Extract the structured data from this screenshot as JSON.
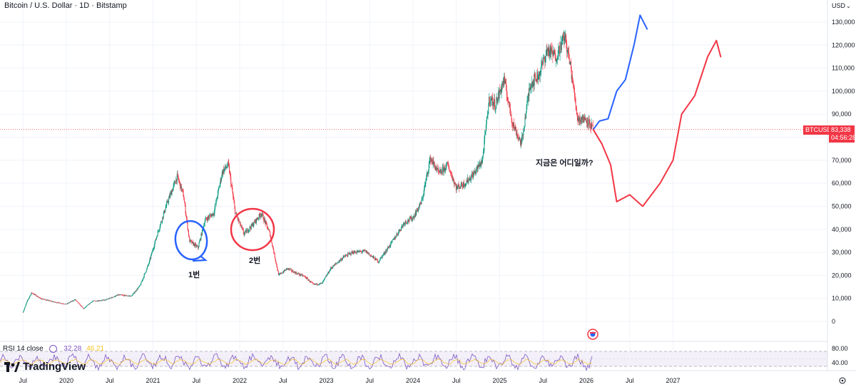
{
  "header": {
    "symbol_title": "Bitcoin / U.S. Dollar · 1D · Bitstamp",
    "currency": "USD"
  },
  "price_badge": {
    "ticker": "BTCUSD",
    "price": "83,338",
    "countdown": "04:56:28",
    "color": "#f23645"
  },
  "rsi_legend": {
    "label": "RSI 14 close",
    "value1": "32.28",
    "value2": "46.21"
  },
  "brand": {
    "name": "TradingView"
  },
  "annotations": {
    "label1": "1번",
    "label2": "2번",
    "question": "지금은 어디일까?"
  },
  "chart_data": {
    "type": "candlestick",
    "title": "Bitcoin / U.S. Dollar · 1D · Bitstamp",
    "y_axis": {
      "ticks": [
        "0",
        "10,000",
        "20,000",
        "30,000",
        "40,000",
        "50,000",
        "60,000",
        "70,000",
        "80,000",
        "90,000",
        "100,000",
        "110,000",
        "120,000",
        "130,000"
      ],
      "range": [
        -5000,
        135000
      ]
    },
    "x_axis": {
      "ticks": [
        "Jul",
        "2020",
        "Jul",
        "2021",
        "Jul",
        "2022",
        "Jul",
        "2023",
        "Jul",
        "2024",
        "Jul",
        "2025",
        "Jul",
        "2026",
        "Jul",
        "2027"
      ]
    },
    "price_path": [
      [
        2019.5,
        4000
      ],
      [
        2019.55,
        9000
      ],
      [
        2019.6,
        12500
      ],
      [
        2019.7,
        10000
      ],
      [
        2019.85,
        8500
      ],
      [
        2020.0,
        7500
      ],
      [
        2020.1,
        9500
      ],
      [
        2020.2,
        5500
      ],
      [
        2020.3,
        8800
      ],
      [
        2020.45,
        9300
      ],
      [
        2020.6,
        11500
      ],
      [
        2020.75,
        11000
      ],
      [
        2020.85,
        15500
      ],
      [
        2020.95,
        25000
      ],
      [
        2021.05,
        38000
      ],
      [
        2021.15,
        50000
      ],
      [
        2021.28,
        63000
      ],
      [
        2021.35,
        55000
      ],
      [
        2021.42,
        35000
      ],
      [
        2021.52,
        32000
      ],
      [
        2021.6,
        44000
      ],
      [
        2021.7,
        47000
      ],
      [
        2021.8,
        65000
      ],
      [
        2021.87,
        68000
      ],
      [
        2021.95,
        47000
      ],
      [
        2022.05,
        38000
      ],
      [
        2022.15,
        42000
      ],
      [
        2022.25,
        47000
      ],
      [
        2022.35,
        38000
      ],
      [
        2022.45,
        20000
      ],
      [
        2022.55,
        23000
      ],
      [
        2022.65,
        21000
      ],
      [
        2022.75,
        19500
      ],
      [
        2022.85,
        16000
      ],
      [
        2022.95,
        16500
      ],
      [
        2023.05,
        23000
      ],
      [
        2023.2,
        28000
      ],
      [
        2023.3,
        30000
      ],
      [
        2023.45,
        30500
      ],
      [
        2023.6,
        26000
      ],
      [
        2023.75,
        34000
      ],
      [
        2023.9,
        43000
      ],
      [
        2024.0,
        45000
      ],
      [
        2024.1,
        52000
      ],
      [
        2024.2,
        71000
      ],
      [
        2024.3,
        64000
      ],
      [
        2024.4,
        68000
      ],
      [
        2024.5,
        58000
      ],
      [
        2024.6,
        60000
      ],
      [
        2024.7,
        64000
      ],
      [
        2024.8,
        70000
      ],
      [
        2024.88,
        97000
      ],
      [
        2024.95,
        94000
      ],
      [
        2025.05,
        105000
      ],
      [
        2025.15,
        86000
      ],
      [
        2025.25,
        77000
      ],
      [
        2025.35,
        103000
      ],
      [
        2025.45,
        107000
      ],
      [
        2025.55,
        118000
      ],
      [
        2025.65,
        115000
      ],
      [
        2025.75,
        124000
      ],
      [
        2025.82,
        110000
      ],
      [
        2025.9,
        88000
      ],
      [
        2026.0,
        88000
      ],
      [
        2026.08,
        83338
      ]
    ],
    "rsi": {
      "levels": [
        "80.00",
        "40.00"
      ],
      "value": 32.28,
      "ma": 46.21
    },
    "current_price": 83338,
    "projection_blue": [
      [
        2026.08,
        83338
      ],
      [
        2026.15,
        87000
      ],
      [
        2026.25,
        88000
      ],
      [
        2026.35,
        100000
      ],
      [
        2026.45,
        105000
      ],
      [
        2026.55,
        120000
      ],
      [
        2026.62,
        133000
      ],
      [
        2026.7,
        127000
      ]
    ],
    "projection_red": [
      [
        2026.08,
        83338
      ],
      [
        2026.18,
        77000
      ],
      [
        2026.28,
        68000
      ],
      [
        2026.35,
        52000
      ],
      [
        2026.5,
        55000
      ],
      [
        2026.65,
        50000
      ],
      [
        2026.85,
        60000
      ],
      [
        2027.0,
        70000
      ],
      [
        2027.1,
        90000
      ],
      [
        2027.25,
        98000
      ],
      [
        2027.4,
        115000
      ],
      [
        2027.5,
        122000
      ],
      [
        2027.55,
        115000
      ]
    ]
  }
}
